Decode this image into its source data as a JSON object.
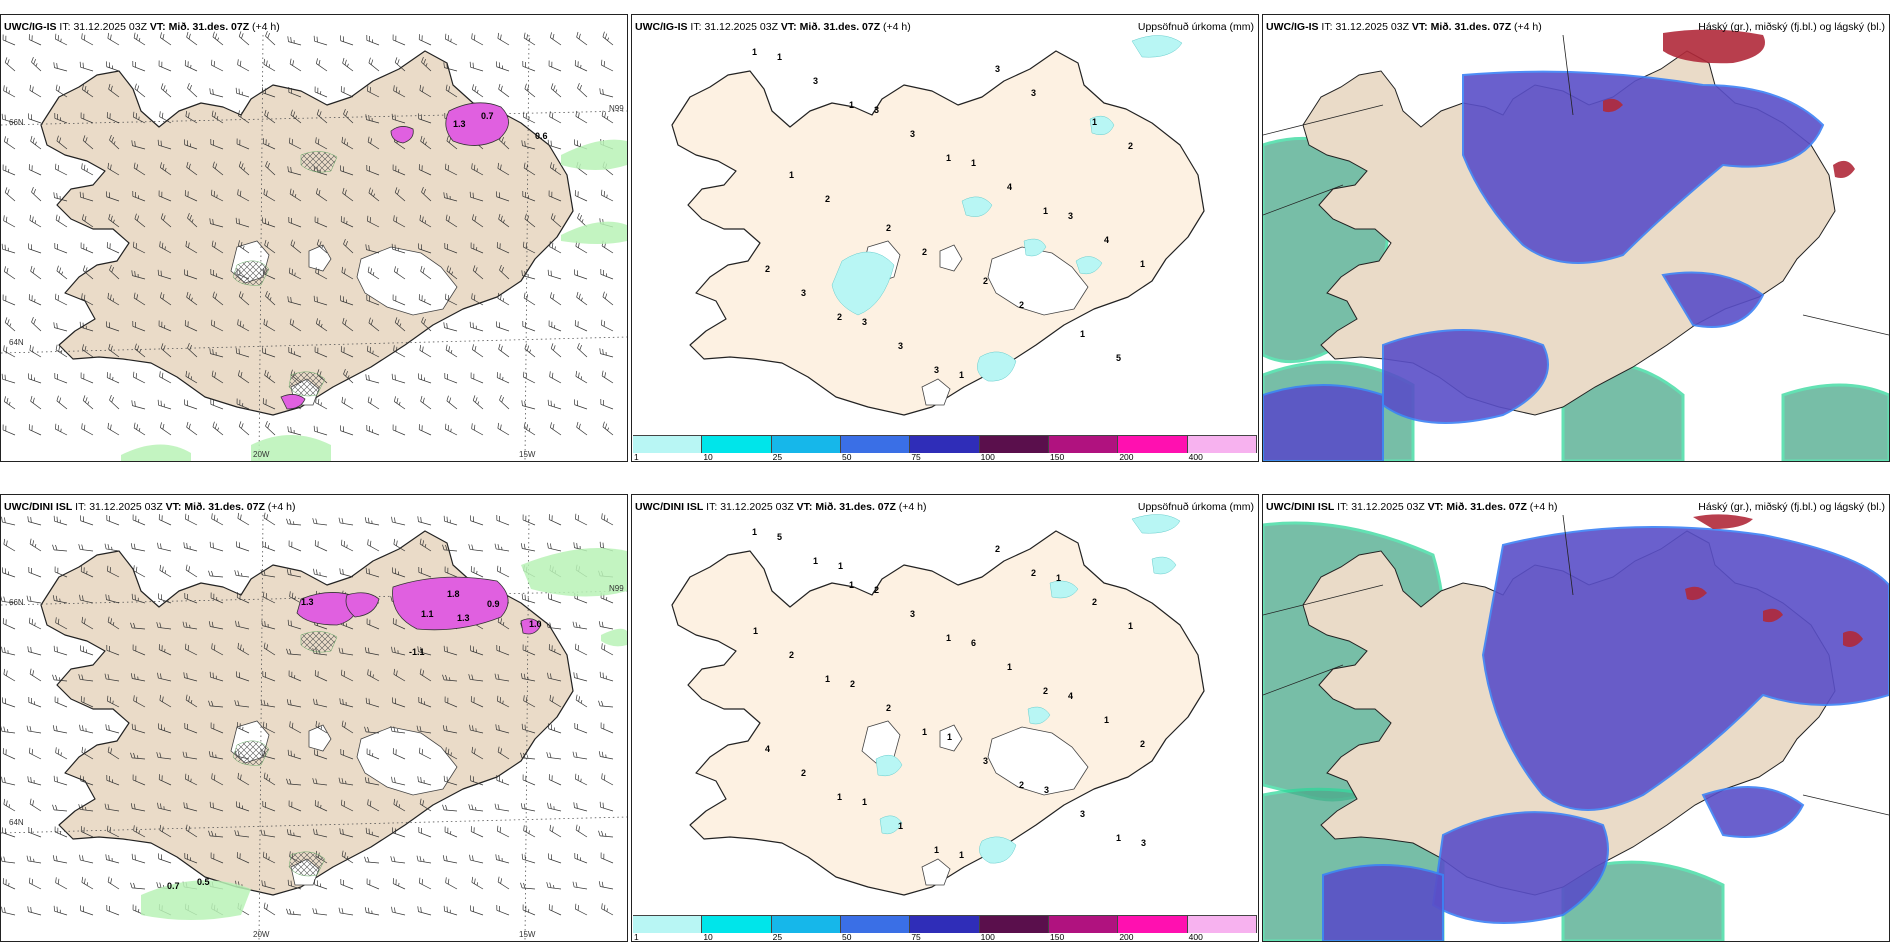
{
  "shared": {
    "init_time": "31.12.2025 03Z",
    "valid_label": "VT:",
    "it_label": "IT:",
    "valid_time": "Mið. 31.des. 07Z",
    "lead": "(+4 h)"
  },
  "rows": [
    {
      "model": "UWC/IG-IS",
      "panels": {
        "wind": {
          "values": [
            "1.3",
            "0.7",
            "0.6"
          ],
          "axes": [
            "66N",
            "64N",
            "20W",
            "15W",
            "N99"
          ]
        },
        "precip": {
          "title": "Uppsöfnuð úrkoma (mm)",
          "values": [
            "1",
            "1",
            "1",
            "1",
            "1",
            "2",
            "3",
            "3",
            "2",
            "2",
            "2",
            "2",
            "5",
            "3",
            "3",
            "4",
            "4",
            "3",
            "3",
            "3",
            "1",
            "1",
            "2",
            "2",
            "1",
            "1",
            "3",
            "1",
            "3",
            "2",
            "3",
            "1"
          ]
        },
        "cloud": {
          "title": "Háský (gr.), miðský (fj.bl.) og lágský (bl.)"
        }
      }
    },
    {
      "model": "UWC/DINI ISL",
      "panels": {
        "wind": {
          "values": [
            "1.3",
            "1.8",
            "1.3",
            "0.9",
            "1.1",
            "-1.1",
            "1.0",
            "0.7",
            "0.5"
          ],
          "axes": [
            "66N",
            "64N",
            "20W",
            "15W",
            "N99"
          ]
        },
        "precip": {
          "title": "Uppsöfnuð úrkoma (mm)",
          "values": [
            "1",
            "1",
            "1",
            "2",
            "2",
            "1",
            "1",
            "2",
            "1",
            "1",
            "1",
            "2",
            "1",
            "1",
            "3",
            "1",
            "1",
            "2",
            "1",
            "2",
            "2",
            "2",
            "2",
            "3",
            "3",
            "5",
            "2",
            "6",
            "4",
            "4",
            "1",
            "1",
            "1",
            "1",
            "2",
            "1",
            "3",
            "3",
            "1"
          ]
        },
        "cloud": {
          "title": "Háský (gr.), miðský (fj.bl.) og lágský (bl.)"
        }
      }
    }
  ],
  "legend": {
    "ticks": [
      "1",
      "10",
      "25",
      "50",
      "75",
      "100",
      "150",
      "200",
      "400"
    ],
    "colors": [
      "#b8f6f4",
      "#00e5ea",
      "#16b7ea",
      "#3a6fe6",
      "#2f2db8",
      "#5a0f4c",
      "#b0127f",
      "#ff10b0",
      "#f7b2ef"
    ]
  },
  "colors": {
    "land": "#eadbc8",
    "land_light": "#fdf1e2",
    "precip_green": "#b8f2b6",
    "precip_magenta": "#e060e0",
    "cloud_high": "#5a4fc8",
    "cloud_mid": "#4aa98a",
    "cloud_low": "#2fd79a",
    "cloud_red": "#b0293a"
  }
}
